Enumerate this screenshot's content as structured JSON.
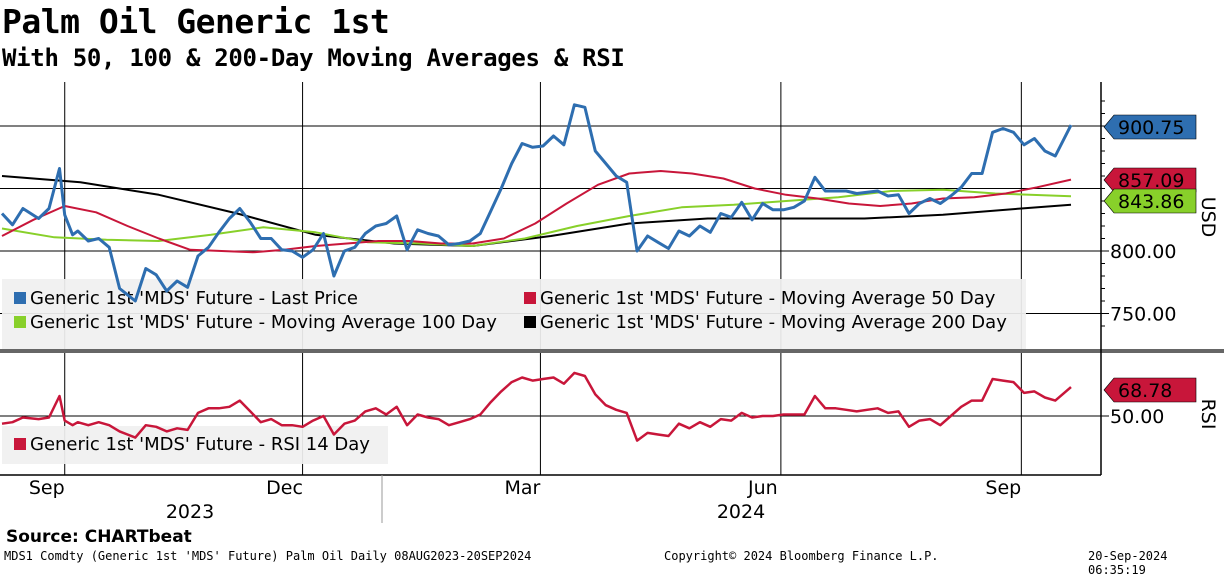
{
  "header": {
    "title": "Palm Oil Generic 1st",
    "subtitle": "With 50, 100 & 200-Day Moving Averages & RSI"
  },
  "footer": {
    "source": "Source: CHARTbeat",
    "ticker": "MDS1 Comdty (Generic 1st 'MDS' Future) Palm Oil  Daily 08AUG2023-20SEP2024",
    "copyright": "Copyright© 2024 Bloomberg Finance L.P.",
    "timestamp": "20-Sep-2024 06:35:19"
  },
  "colors": {
    "price": "#2e6eb0",
    "ma50": "#c8163a",
    "ma100": "#88d02a",
    "ma200": "#000000",
    "rsi": "#c8163a"
  },
  "chart_data": [
    {
      "type": "line",
      "panel": "price",
      "ylabel": "USD",
      "ylim": [
        730,
        930
      ],
      "yticks": [
        "750.00",
        "800.00"
      ],
      "x_range": [
        "2023-08-08",
        "2024-09-20"
      ],
      "x_tick_labels": [
        "Sep",
        "Dec",
        "Mar",
        "Jun",
        "Sep"
      ],
      "x_year_labels": [
        "2023",
        "2024"
      ],
      "grid": true,
      "legend": "bottom-left",
      "last_value_labels": [
        {
          "series": "Generic 1st 'MDS' Future - Last Price",
          "text": "900.75",
          "color": "#2e6eb0",
          "text_color": "#ffffff"
        },
        {
          "series": "Generic 1st 'MDS' Future - Moving Average 50 Day",
          "text": "857.09",
          "color": "#c8163a",
          "text_color": "#ffffff"
        },
        {
          "series": "Generic 1st 'MDS' Future - Moving Average 100 Day",
          "text": "843.86",
          "color": "#88d02a",
          "text_color": "#000000"
        }
      ],
      "series": [
        {
          "name": "Generic 1st 'MDS' Future - Last Price",
          "color": "#2e6eb0",
          "x": [
            "2023-08-08",
            "2023-08-12",
            "2023-08-16",
            "2023-08-22",
            "2023-08-26",
            "2023-08-30",
            "2023-09-01",
            "2023-09-04",
            "2023-09-06",
            "2023-09-10",
            "2023-09-14",
            "2023-09-18",
            "2023-09-22",
            "2023-09-28",
            "2023-10-02",
            "2023-10-06",
            "2023-10-10",
            "2023-10-14",
            "2023-10-18",
            "2023-10-22",
            "2023-10-26",
            "2023-10-30",
            "2023-11-03",
            "2023-11-07",
            "2023-11-11",
            "2023-11-15",
            "2023-11-19",
            "2023-11-23",
            "2023-11-27",
            "2023-12-01",
            "2023-12-05",
            "2023-12-09",
            "2023-12-13",
            "2023-12-17",
            "2023-12-21",
            "2023-12-25",
            "2023-12-29",
            "2024-01-02",
            "2024-01-06",
            "2024-01-10",
            "2024-01-14",
            "2024-01-18",
            "2024-01-22",
            "2024-01-26",
            "2024-01-30",
            "2024-02-03",
            "2024-02-07",
            "2024-02-11",
            "2024-02-15",
            "2024-02-19",
            "2024-02-23",
            "2024-02-27",
            "2024-03-02",
            "2024-03-06",
            "2024-03-10",
            "2024-03-14",
            "2024-03-18",
            "2024-03-22",
            "2024-03-26",
            "2024-03-30",
            "2024-04-03",
            "2024-04-07",
            "2024-04-11",
            "2024-04-15",
            "2024-04-19",
            "2024-04-23",
            "2024-04-27",
            "2024-05-01",
            "2024-05-05",
            "2024-05-09",
            "2024-05-13",
            "2024-05-17",
            "2024-05-21",
            "2024-05-25",
            "2024-05-29",
            "2024-06-02",
            "2024-06-06",
            "2024-06-10",
            "2024-06-14",
            "2024-06-18",
            "2024-06-22",
            "2024-06-26",
            "2024-06-30",
            "2024-07-04",
            "2024-07-08",
            "2024-07-12",
            "2024-07-16",
            "2024-07-20",
            "2024-07-24",
            "2024-07-28",
            "2024-08-01",
            "2024-08-05",
            "2024-08-09",
            "2024-08-13",
            "2024-08-17",
            "2024-08-21",
            "2024-08-25",
            "2024-08-29",
            "2024-09-02",
            "2024-09-06",
            "2024-09-10",
            "2024-09-14",
            "2024-09-20"
          ],
          "values": [
            830,
            821,
            834,
            826,
            834,
            866,
            829,
            813,
            816,
            808,
            810,
            803,
            770,
            760,
            786,
            781,
            768,
            776,
            771,
            796,
            803,
            815,
            826,
            834,
            823,
            810,
            810,
            801,
            800,
            795,
            801,
            814,
            780,
            800,
            803,
            814,
            820,
            822,
            828,
            801,
            817,
            814,
            812,
            805,
            806,
            808,
            814,
            832,
            850,
            870,
            886,
            883,
            884,
            892,
            885,
            917,
            915,
            880,
            870,
            860,
            855,
            800,
            812,
            807,
            802,
            816,
            812,
            820,
            815,
            830,
            827,
            839,
            825,
            838,
            833,
            833,
            835,
            840,
            859,
            848,
            848,
            848,
            846,
            847,
            848,
            844,
            845,
            830,
            838,
            842,
            838,
            844,
            851,
            862,
            862,
            895,
            898,
            895,
            885,
            890,
            880,
            876,
            900.75
          ]
        },
        {
          "name": "Generic 1st 'MDS' Future - Moving Average 50 Day",
          "color": "#c8163a",
          "x": [
            "2023-08-08",
            "2023-08-20",
            "2023-09-01",
            "2023-09-13",
            "2023-09-25",
            "2023-10-07",
            "2023-10-19",
            "2023-10-31",
            "2023-11-12",
            "2023-11-24",
            "2023-12-06",
            "2023-12-18",
            "2023-12-30",
            "2024-01-11",
            "2024-01-23",
            "2024-02-04",
            "2024-02-16",
            "2024-02-28",
            "2024-03-11",
            "2024-03-23",
            "2024-04-04",
            "2024-04-16",
            "2024-04-28",
            "2024-05-10",
            "2024-05-22",
            "2024-06-03",
            "2024-06-15",
            "2024-06-27",
            "2024-07-09",
            "2024-07-21",
            "2024-08-02",
            "2024-08-14",
            "2024-08-26",
            "2024-09-07",
            "2024-09-20"
          ],
          "values": [
            812,
            825,
            836,
            831,
            820,
            810,
            801,
            800,
            799,
            801,
            804,
            806,
            808,
            808,
            806,
            806,
            810,
            822,
            838,
            853,
            862,
            864,
            862,
            858,
            850,
            845,
            842,
            838,
            836,
            838,
            842,
            843,
            846,
            851,
            857.09
          ]
        },
        {
          "name": "Generic 1st 'MDS' Future - Moving Average 100 Day",
          "color": "#88d02a",
          "x": [
            "2023-08-08",
            "2023-08-28",
            "2023-09-17",
            "2023-10-07",
            "2023-10-27",
            "2023-11-16",
            "2023-12-06",
            "2023-12-26",
            "2024-01-15",
            "2024-02-04",
            "2024-02-24",
            "2024-03-15",
            "2024-04-04",
            "2024-04-24",
            "2024-05-14",
            "2024-06-03",
            "2024-06-23",
            "2024-07-13",
            "2024-08-02",
            "2024-08-22",
            "2024-09-20"
          ],
          "values": [
            818,
            811,
            809,
            808,
            813,
            819,
            815,
            807,
            806,
            804,
            810,
            820,
            828,
            835,
            837,
            840,
            843,
            848,
            849,
            846,
            843.86
          ]
        },
        {
          "name": "Generic 1st 'MDS' Future - Moving Average 200 Day",
          "color": "#000000",
          "x": [
            "2023-08-08",
            "2023-09-07",
            "2023-10-07",
            "2023-11-06",
            "2023-12-06",
            "2024-01-05",
            "2024-02-04",
            "2024-03-05",
            "2024-04-04",
            "2024-05-04",
            "2024-06-03",
            "2024-07-03",
            "2024-08-02",
            "2024-09-01",
            "2024-09-20"
          ],
          "values": [
            860,
            855,
            845,
            830,
            813,
            806,
            804,
            812,
            822,
            826,
            826,
            826,
            829,
            834,
            837
          ]
        }
      ]
    },
    {
      "type": "line",
      "panel": "rsi",
      "ylabel": "RSI",
      "ylim": [
        25,
        85
      ],
      "yticks": [
        "50.00"
      ],
      "legend": "bottom-left",
      "last_value_labels": [
        {
          "series": "Generic 1st 'MDS' Future - RSI 14 Day",
          "text": "68.78",
          "color": "#c8163a",
          "text_color": "#ffffff"
        }
      ],
      "series": [
        {
          "name": "Generic 1st 'MDS' Future - RSI 14 Day",
          "color": "#c8163a",
          "x": [
            "2023-08-08",
            "2023-08-12",
            "2023-08-16",
            "2023-08-22",
            "2023-08-26",
            "2023-08-30",
            "2023-09-01",
            "2023-09-04",
            "2023-09-06",
            "2023-09-10",
            "2023-09-14",
            "2023-09-18",
            "2023-09-22",
            "2023-09-28",
            "2023-10-02",
            "2023-10-06",
            "2023-10-10",
            "2023-10-14",
            "2023-10-18",
            "2023-10-22",
            "2023-10-26",
            "2023-10-30",
            "2023-11-03",
            "2023-11-07",
            "2023-11-11",
            "2023-11-15",
            "2023-11-19",
            "2023-11-23",
            "2023-11-27",
            "2023-12-01",
            "2023-12-05",
            "2023-12-09",
            "2023-12-13",
            "2023-12-17",
            "2023-12-21",
            "2023-12-25",
            "2023-12-29",
            "2024-01-02",
            "2024-01-06",
            "2024-01-10",
            "2024-01-14",
            "2024-01-18",
            "2024-01-22",
            "2024-01-26",
            "2024-01-30",
            "2024-02-03",
            "2024-02-07",
            "2024-02-11",
            "2024-02-15",
            "2024-02-19",
            "2024-02-23",
            "2024-02-27",
            "2024-03-02",
            "2024-03-06",
            "2024-03-10",
            "2024-03-14",
            "2024-03-18",
            "2024-03-22",
            "2024-03-26",
            "2024-03-30",
            "2024-04-03",
            "2024-04-07",
            "2024-04-11",
            "2024-04-15",
            "2024-04-19",
            "2024-04-23",
            "2024-04-27",
            "2024-05-01",
            "2024-05-05",
            "2024-05-09",
            "2024-05-13",
            "2024-05-17",
            "2024-05-21",
            "2024-05-25",
            "2024-05-29",
            "2024-06-02",
            "2024-06-06",
            "2024-06-10",
            "2024-06-14",
            "2024-06-18",
            "2024-06-22",
            "2024-06-26",
            "2024-06-30",
            "2024-07-04",
            "2024-07-08",
            "2024-07-12",
            "2024-07-16",
            "2024-07-20",
            "2024-07-24",
            "2024-07-28",
            "2024-08-01",
            "2024-08-05",
            "2024-08-09",
            "2024-08-13",
            "2024-08-17",
            "2024-08-21",
            "2024-08-25",
            "2024-08-29",
            "2024-09-02",
            "2024-09-06",
            "2024-09-10",
            "2024-09-14",
            "2024-09-20"
          ],
          "values": [
            45,
            46,
            49,
            48,
            49,
            63,
            47,
            44,
            46,
            44,
            46,
            44,
            40,
            36,
            44,
            43,
            40,
            42,
            41,
            52,
            55,
            55,
            56,
            60,
            53,
            46,
            48,
            44,
            44,
            43,
            47,
            50,
            38,
            45,
            47,
            53,
            55,
            51,
            56,
            44,
            51,
            49,
            48,
            44,
            46,
            48,
            51,
            59,
            66,
            72,
            75,
            73,
            74,
            75,
            71,
            78,
            76,
            64,
            57,
            54,
            52,
            34,
            39,
            38,
            37,
            45,
            42,
            46,
            43,
            48,
            47,
            52,
            49,
            50,
            50,
            51,
            51,
            51,
            63,
            55,
            55,
            54,
            53,
            54,
            55,
            52,
            53,
            43,
            47,
            48,
            44,
            50,
            56,
            60,
            60,
            74,
            73,
            72,
            65,
            66,
            62,
            60,
            68.78
          ]
        }
      ]
    }
  ]
}
